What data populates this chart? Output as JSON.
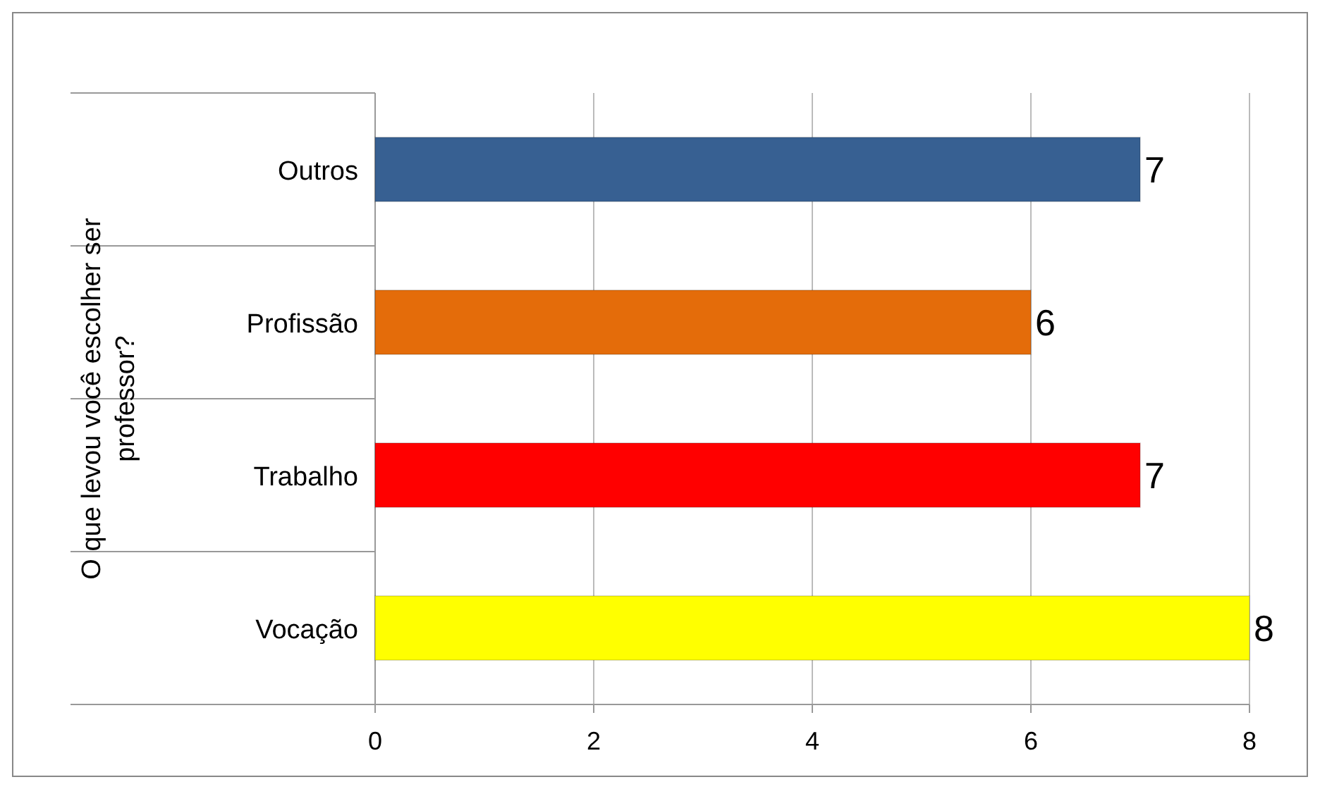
{
  "chart_data": {
    "type": "bar",
    "orientation": "horizontal",
    "ylabel": "O que levou você escolher ser professor?",
    "categories": [
      "Outros",
      "Profissão",
      "Trabalho",
      "Vocação"
    ],
    "values": [
      7,
      6,
      7,
      8
    ],
    "colors": [
      "#376092",
      "#e46c0a",
      "#ff0000",
      "#ffff00"
    ],
    "xlim": [
      0,
      8
    ],
    "xticks": [
      0,
      2,
      4,
      6,
      8
    ],
    "grid": "x",
    "data_labels": true
  }
}
